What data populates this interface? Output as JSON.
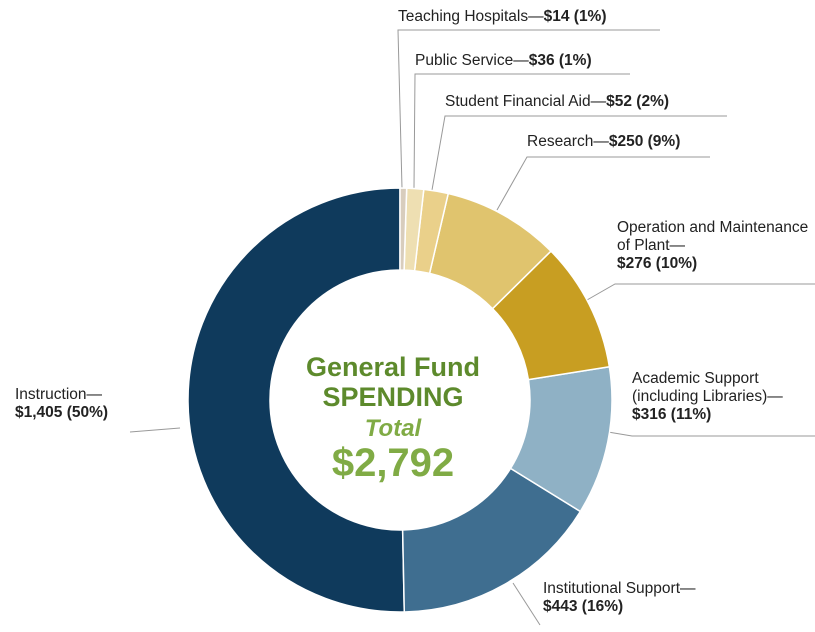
{
  "chart_data": {
    "type": "donut",
    "categories": [
      "Teaching Hospitals—",
      "Public Service—",
      "Student Financial Aid—",
      "Research—",
      "Operation and Maintenance of Plant—",
      "Academic Support (including Libraries)—",
      "Institutional Support—",
      "Instruction—"
    ],
    "values": [
      14,
      36,
      52,
      250,
      276,
      316,
      443,
      1405
    ],
    "value_labels": [
      "$14 (1%)",
      "$36 (1%)",
      "$52 (2%)",
      "$250 (9%)",
      "$276 (10%)",
      "$316 (11%)",
      "$443 (16%)",
      "$1,405 (50%)"
    ],
    "colors": [
      "#d8cdbd",
      "#eedfb2",
      "#ead08a",
      "#e0c46e",
      "#c89e22",
      "#8fb1c5",
      "#3f6e90",
      "#0f3a5c"
    ],
    "center": {
      "lines": [
        "General Fund",
        "SPENDING"
      ],
      "total": {
        "label": "Total",
        "value": 2792,
        "value_label": "$2,792"
      }
    }
  }
}
